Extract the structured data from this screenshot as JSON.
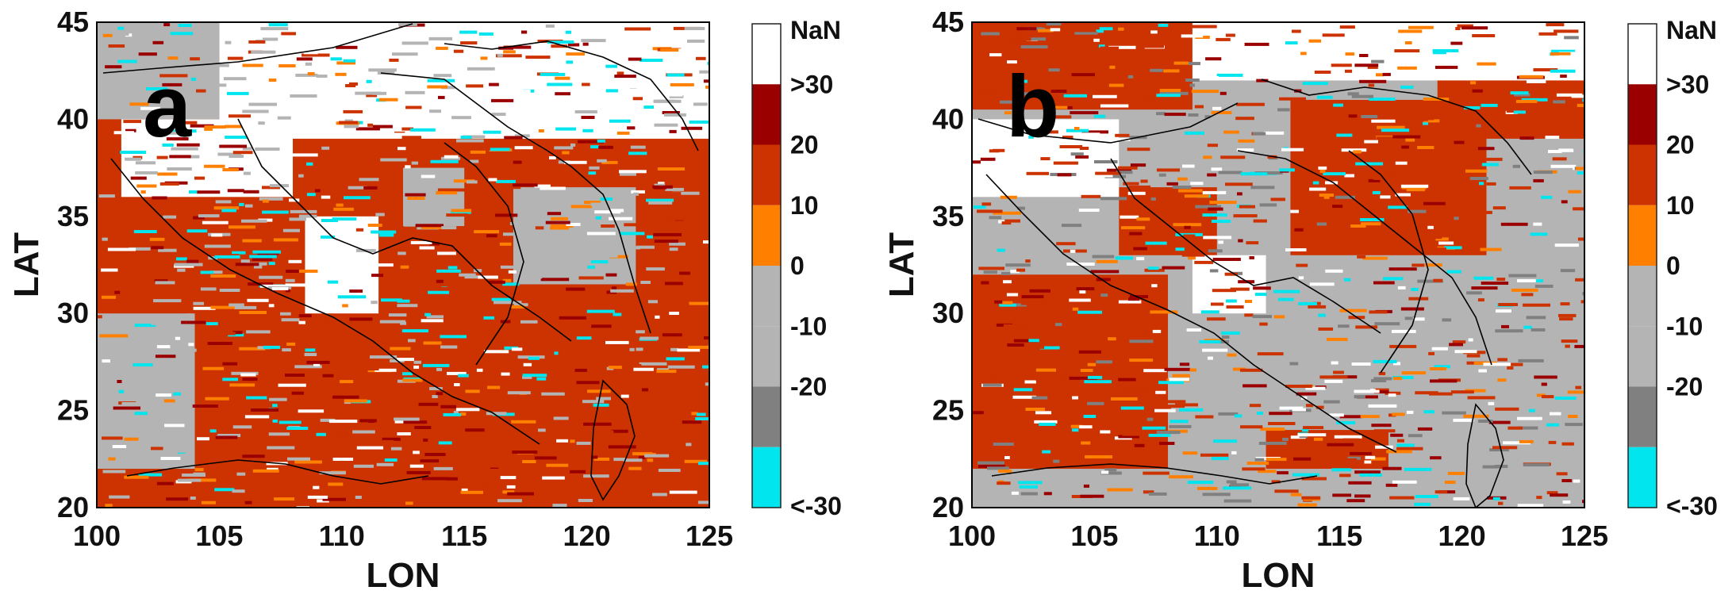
{
  "chart_data": [
    {
      "type": "heatmap",
      "panel_label": "a",
      "xlabel": "LON",
      "ylabel": "LAT",
      "xlim": [
        100,
        125
      ],
      "ylim": [
        20,
        45
      ],
      "xticks": [
        "100",
        "105",
        "110",
        "115",
        "120",
        "125"
      ],
      "yticks": [
        "20",
        "25",
        "30",
        "35",
        "40",
        "45"
      ],
      "legend_position": "right",
      "colorbar": {
        "ticks": [
          "NaN",
          ">30",
          "20",
          "10",
          "0",
          "-10",
          "-20",
          "<-30"
        ],
        "classes": [
          {
            "label": "NaN",
            "color": "#ffffff"
          },
          {
            "range": [
              30,
              null
            ],
            "color": "#9b0000"
          },
          {
            "range": [
              20,
              30
            ],
            "color": "#cc3300"
          },
          {
            "range": [
              10,
              20
            ],
            "color": "#ff8000"
          },
          {
            "range": [
              0,
              10
            ],
            "color": "#b4b4b4"
          },
          {
            "range": [
              -10,
              0
            ],
            "color": "#b4b4b4"
          },
          {
            "range": [
              -20,
              -10
            ],
            "color": "#808080"
          },
          {
            "range": [
              null,
              -20
            ],
            "color": "#00e5ee"
          }
        ]
      },
      "dominant_class": "20",
      "regions": [
        {
          "lon": [
            100,
            125
          ],
          "lat": [
            20,
            45
          ],
          "class": "20"
        },
        {
          "lon": [
            105,
            125
          ],
          "lat": [
            39,
            45
          ],
          "class": "NaN"
        },
        {
          "lon": [
            101,
            108
          ],
          "lat": [
            36,
            40
          ],
          "class": "NaN"
        },
        {
          "lon": [
            108.5,
            111.5
          ],
          "lat": [
            30,
            35
          ],
          "class": "NaN"
        },
        {
          "lon": [
            112.5,
            115
          ],
          "lat": [
            34.5,
            37.5
          ],
          "class": "0"
        },
        {
          "lon": [
            100,
            105
          ],
          "lat": [
            40,
            45
          ],
          "class": "0"
        },
        {
          "lon": [
            117,
            122
          ],
          "lat": [
            31.5,
            36.5
          ],
          "class": "0"
        },
        {
          "lon": [
            100,
            104
          ],
          "lat": [
            22,
            30
          ],
          "class": "0"
        }
      ]
    },
    {
      "type": "heatmap",
      "panel_label": "b",
      "xlabel": "LON",
      "ylabel": "LAT",
      "xlim": [
        100,
        125
      ],
      "ylim": [
        20,
        45
      ],
      "xticks": [
        "100",
        "105",
        "110",
        "115",
        "120",
        "125"
      ],
      "yticks": [
        "20",
        "25",
        "30",
        "35",
        "40",
        "45"
      ],
      "legend_position": "right",
      "colorbar": {
        "ticks": [
          "NaN",
          ">30",
          "20",
          "10",
          "0",
          "-10",
          "-20",
          "<-30"
        ],
        "classes": [
          {
            "label": "NaN",
            "color": "#ffffff"
          },
          {
            "range": [
              30,
              null
            ],
            "color": "#9b0000"
          },
          {
            "range": [
              20,
              30
            ],
            "color": "#cc3300"
          },
          {
            "range": [
              10,
              20
            ],
            "color": "#ff8000"
          },
          {
            "range": [
              0,
              10
            ],
            "color": "#b4b4b4"
          },
          {
            "range": [
              -10,
              0
            ],
            "color": "#b4b4b4"
          },
          {
            "range": [
              -20,
              -10
            ],
            "color": "#808080"
          },
          {
            "range": [
              null,
              -20
            ],
            "color": "#00e5ee"
          }
        ]
      },
      "dominant_class": "0",
      "regions": [
        {
          "lon": [
            100,
            125
          ],
          "lat": [
            20,
            45
          ],
          "class": "0"
        },
        {
          "lon": [
            100,
            109
          ],
          "lat": [
            40.5,
            45
          ],
          "class": "20"
        },
        {
          "lon": [
            100,
            108
          ],
          "lat": [
            22,
            32
          ],
          "class": "20"
        },
        {
          "lon": [
            113,
            121
          ],
          "lat": [
            33,
            41
          ],
          "class": "20"
        },
        {
          "lon": [
            106,
            110
          ],
          "lat": [
            33,
            36.5
          ],
          "class": "20"
        },
        {
          "lon": [
            119,
            125
          ],
          "lat": [
            39,
            43
          ],
          "class": "20"
        },
        {
          "lon": [
            112,
            117
          ],
          "lat": [
            22,
            24
          ],
          "class": "20"
        },
        {
          "lon": [
            109,
            125
          ],
          "lat": [
            42,
            45
          ],
          "class": "NaN"
        },
        {
          "lon": [
            100,
            106
          ],
          "lat": [
            36,
            40
          ],
          "class": "NaN"
        },
        {
          "lon": [
            109,
            112
          ],
          "lat": [
            30,
            33
          ],
          "class": "NaN"
        },
        {
          "lon": [
            116,
            121
          ],
          "lat": [
            28,
            31
          ],
          "class": "0"
        }
      ]
    }
  ]
}
